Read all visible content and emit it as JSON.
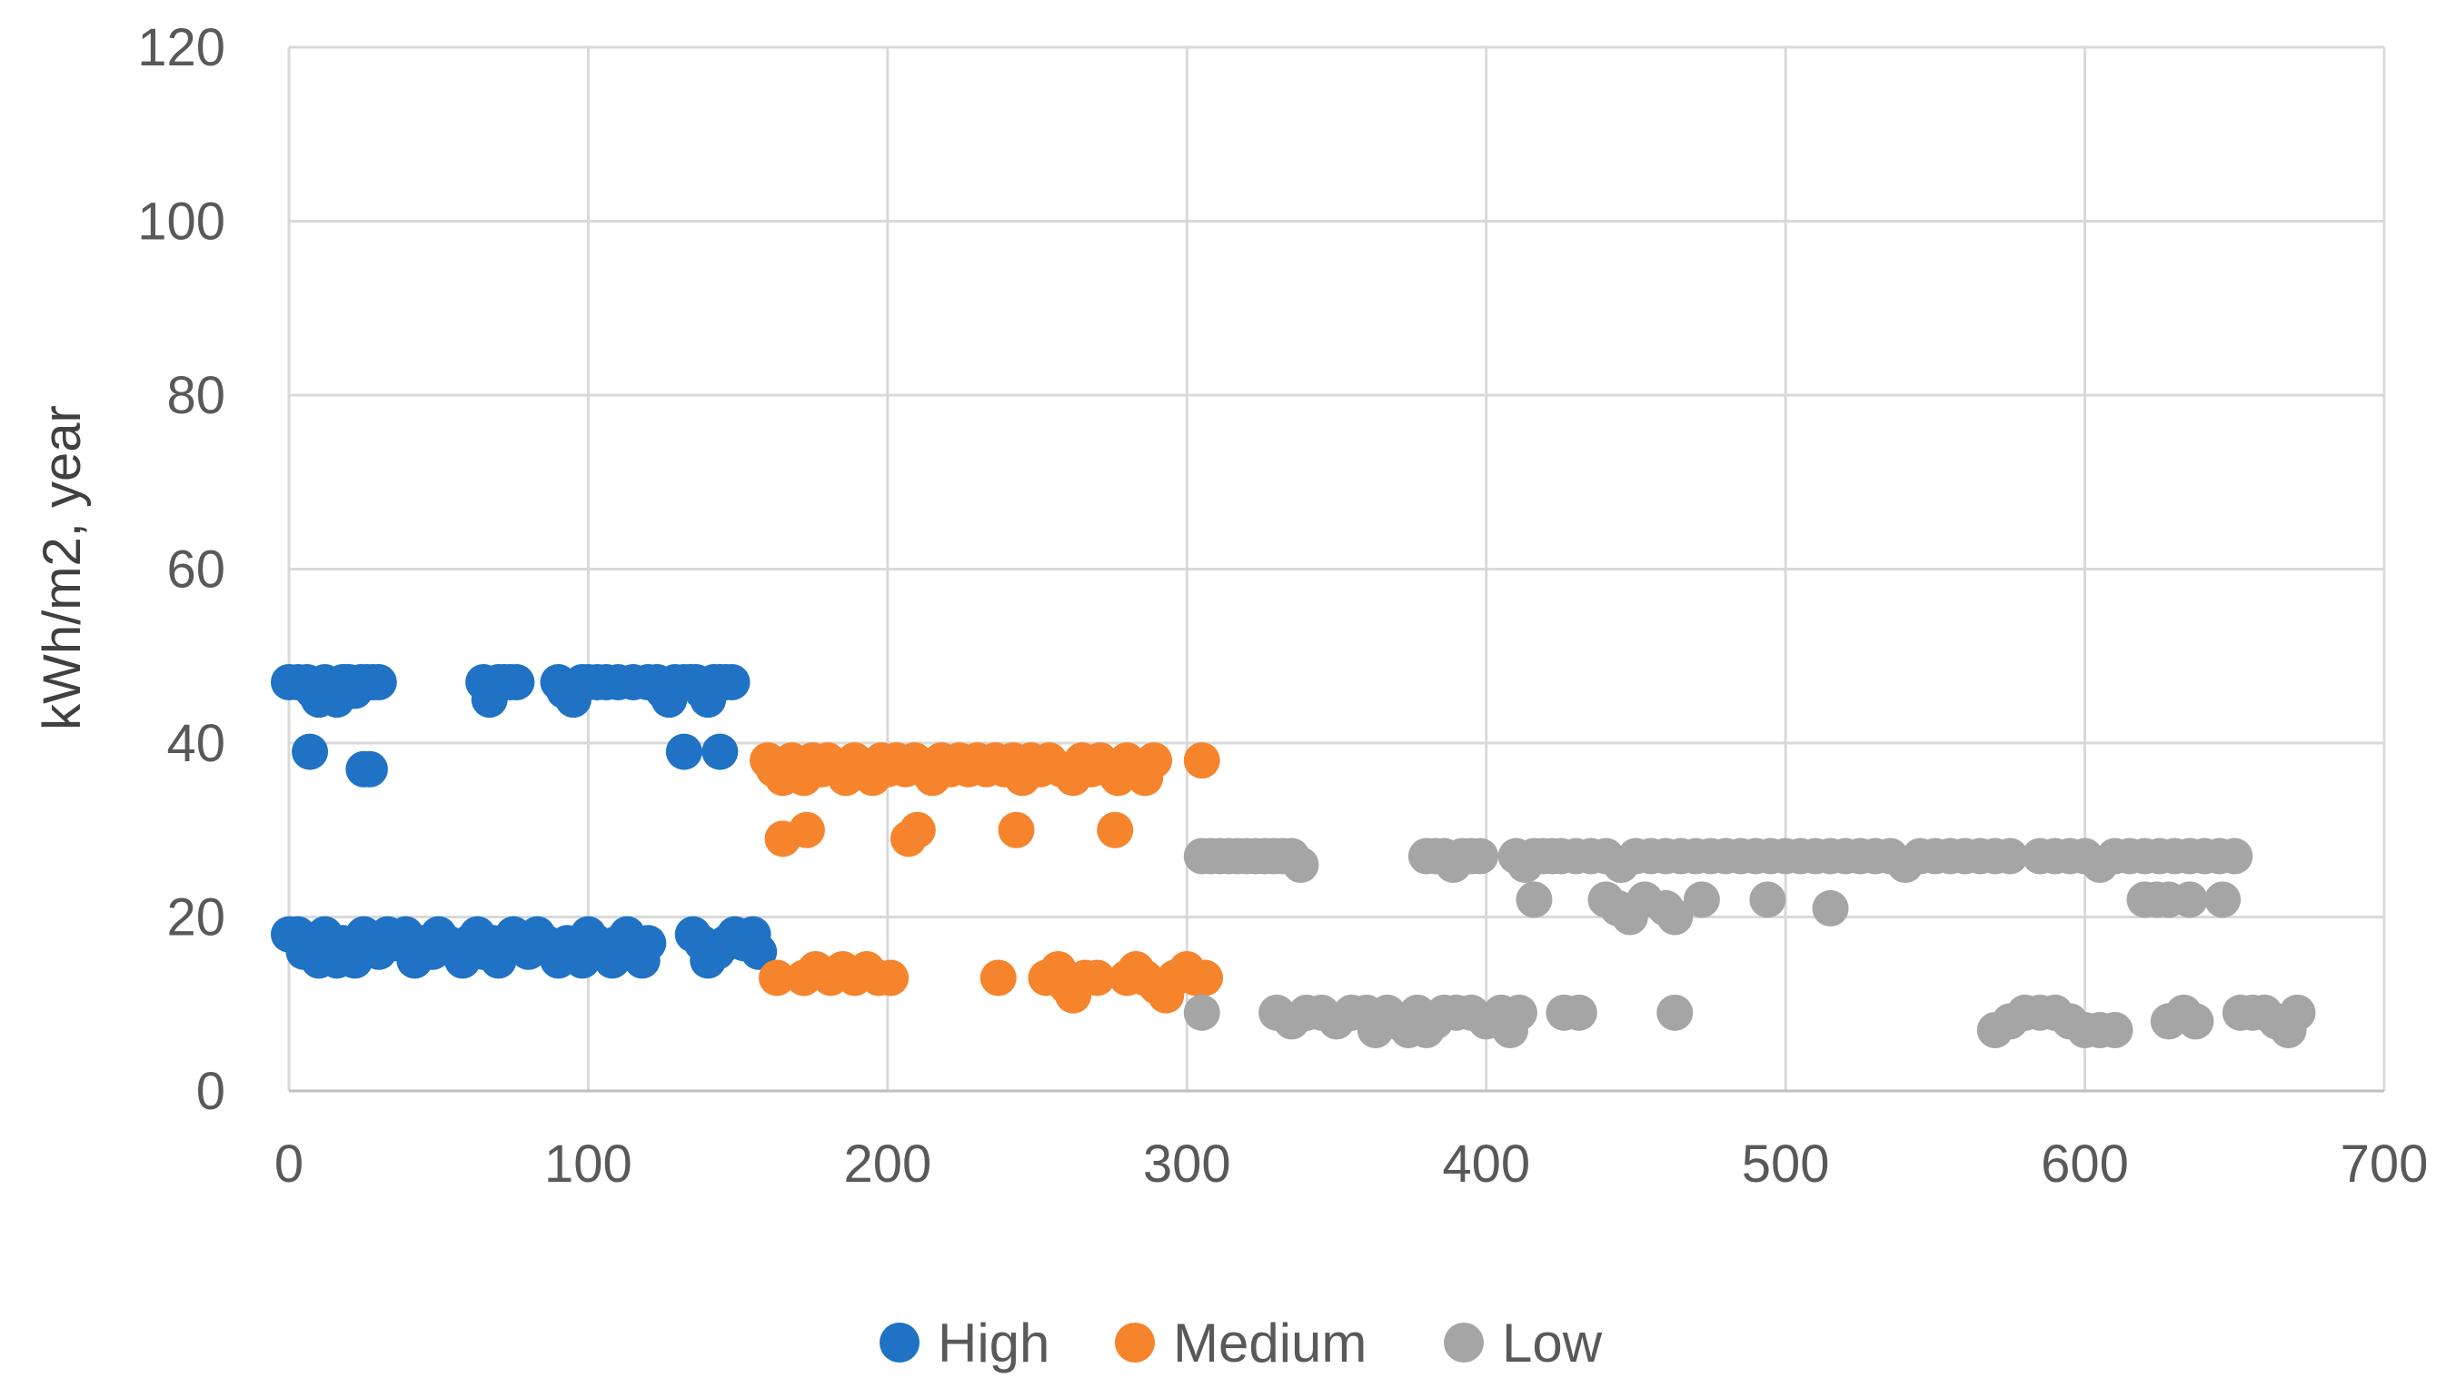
{
  "chart_data": {
    "type": "scatter",
    "title": "",
    "xlabel": "",
    "ylabel": "kWh/m2, year",
    "xlim": [
      0,
      700
    ],
    "ylim": [
      0,
      120
    ],
    "x_ticks": [
      0,
      100,
      200,
      300,
      400,
      500,
      600,
      700
    ],
    "y_ticks": [
      0,
      20,
      40,
      60,
      80,
      100,
      120
    ],
    "x_tick_labels": [
      "0",
      "100",
      "200",
      "300",
      "400",
      "500",
      "600",
      "700"
    ],
    "y_tick_labels": [
      "0",
      "20",
      "40",
      "60",
      "80",
      "100",
      "120"
    ],
    "grid": true,
    "legend_position": "bottom",
    "colors": {
      "High": "#1f72c4",
      "Medium": "#f5842c",
      "Low": "#a5a5a5"
    },
    "series": [
      {
        "name": "High",
        "color": "#1f72c4",
        "points": [
          [
            0,
            47
          ],
          [
            3,
            47
          ],
          [
            6,
            47
          ],
          [
            8,
            46
          ],
          [
            10,
            45
          ],
          [
            12,
            47
          ],
          [
            14,
            46
          ],
          [
            16,
            45
          ],
          [
            18,
            47
          ],
          [
            20,
            47
          ],
          [
            22,
            46
          ],
          [
            24,
            47
          ],
          [
            26,
            47
          ],
          [
            28,
            47
          ],
          [
            30,
            47
          ],
          [
            7,
            39
          ],
          [
            25,
            37
          ],
          [
            27,
            37
          ],
          [
            65,
            47
          ],
          [
            67,
            45
          ],
          [
            70,
            47
          ],
          [
            72,
            47
          ],
          [
            74,
            47
          ],
          [
            76,
            47
          ],
          [
            90,
            47
          ],
          [
            92,
            46
          ],
          [
            95,
            45
          ],
          [
            98,
            47
          ],
          [
            100,
            47
          ],
          [
            103,
            47
          ],
          [
            106,
            47
          ],
          [
            110,
            47
          ],
          [
            115,
            47
          ],
          [
            120,
            47
          ],
          [
            123,
            47
          ],
          [
            125,
            46
          ],
          [
            127,
            45
          ],
          [
            129,
            47
          ],
          [
            132,
            47
          ],
          [
            134,
            47
          ],
          [
            136,
            47
          ],
          [
            138,
            46
          ],
          [
            140,
            45
          ],
          [
            142,
            47
          ],
          [
            144,
            47
          ],
          [
            146,
            47
          ],
          [
            148,
            47
          ],
          [
            132,
            39
          ],
          [
            144,
            39
          ],
          [
            0,
            18
          ],
          [
            3,
            18
          ],
          [
            5,
            16
          ],
          [
            8,
            17
          ],
          [
            10,
            15
          ],
          [
            12,
            18
          ],
          [
            14,
            16
          ],
          [
            16,
            15
          ],
          [
            18,
            17
          ],
          [
            20,
            16
          ],
          [
            22,
            15
          ],
          [
            25,
            18
          ],
          [
            28,
            17
          ],
          [
            30,
            16
          ],
          [
            33,
            18
          ],
          [
            36,
            17
          ],
          [
            39,
            18
          ],
          [
            42,
            15
          ],
          [
            45,
            17
          ],
          [
            48,
            16
          ],
          [
            50,
            18
          ],
          [
            53,
            17
          ],
          [
            56,
            16
          ],
          [
            58,
            15
          ],
          [
            60,
            17
          ],
          [
            63,
            18
          ],
          [
            65,
            16
          ],
          [
            68,
            17
          ],
          [
            70,
            15
          ],
          [
            72,
            17
          ],
          [
            75,
            18
          ],
          [
            78,
            17
          ],
          [
            80,
            16
          ],
          [
            83,
            18
          ],
          [
            86,
            17
          ],
          [
            88,
            16
          ],
          [
            90,
            15
          ],
          [
            93,
            17
          ],
          [
            95,
            16
          ],
          [
            98,
            15
          ],
          [
            100,
            18
          ],
          [
            103,
            17
          ],
          [
            106,
            16
          ],
          [
            108,
            15
          ],
          [
            110,
            17
          ],
          [
            113,
            18
          ],
          [
            115,
            16
          ],
          [
            118,
            15
          ],
          [
            120,
            17
          ],
          [
            135,
            18
          ],
          [
            138,
            17
          ],
          [
            140,
            15
          ],
          [
            143,
            16
          ],
          [
            146,
            17
          ],
          [
            149,
            18
          ],
          [
            152,
            17
          ],
          [
            155,
            18
          ],
          [
            157,
            16
          ]
        ]
      },
      {
        "name": "Medium",
        "color": "#f5842c",
        "points": [
          [
            160,
            38
          ],
          [
            162,
            37
          ],
          [
            165,
            36
          ],
          [
            168,
            38
          ],
          [
            170,
            37
          ],
          [
            172,
            36
          ],
          [
            175,
            38
          ],
          [
            178,
            37
          ],
          [
            180,
            38
          ],
          [
            183,
            37
          ],
          [
            186,
            36
          ],
          [
            189,
            38
          ],
          [
            192,
            37
          ],
          [
            195,
            36
          ],
          [
            198,
            38
          ],
          [
            200,
            37
          ],
          [
            203,
            38
          ],
          [
            206,
            37
          ],
          [
            209,
            38
          ],
          [
            212,
            37
          ],
          [
            215,
            36
          ],
          [
            218,
            38
          ],
          [
            221,
            37
          ],
          [
            224,
            38
          ],
          [
            227,
            37
          ],
          [
            230,
            38
          ],
          [
            233,
            37
          ],
          [
            236,
            38
          ],
          [
            239,
            37
          ],
          [
            242,
            38
          ],
          [
            245,
            36
          ],
          [
            248,
            38
          ],
          [
            251,
            37
          ],
          [
            254,
            38
          ],
          [
            258,
            37
          ],
          [
            262,
            36
          ],
          [
            265,
            38
          ],
          [
            268,
            37
          ],
          [
            271,
            38
          ],
          [
            274,
            37
          ],
          [
            277,
            36
          ],
          [
            280,
            38
          ],
          [
            283,
            37
          ],
          [
            286,
            36
          ],
          [
            289,
            38
          ],
          [
            305,
            38
          ],
          [
            165,
            29
          ],
          [
            173,
            30
          ],
          [
            207,
            29
          ],
          [
            210,
            30
          ],
          [
            243,
            30
          ],
          [
            276,
            30
          ],
          [
            163,
            13
          ],
          [
            172,
            13
          ],
          [
            176,
            14
          ],
          [
            181,
            13
          ],
          [
            185,
            14
          ],
          [
            189,
            13
          ],
          [
            193,
            14
          ],
          [
            197,
            13
          ],
          [
            201,
            13
          ],
          [
            237,
            13
          ],
          [
            253,
            13
          ],
          [
            257,
            14
          ],
          [
            260,
            12
          ],
          [
            262,
            11
          ],
          [
            266,
            13
          ],
          [
            270,
            13
          ],
          [
            280,
            13
          ],
          [
            283,
            14
          ],
          [
            286,
            13
          ],
          [
            290,
            12
          ],
          [
            293,
            11
          ],
          [
            296,
            13
          ],
          [
            300,
            14
          ],
          [
            303,
            13
          ],
          [
            306,
            13
          ]
        ]
      },
      {
        "name": "Low",
        "color": "#a5a5a5",
        "points": [
          [
            305,
            27
          ],
          [
            308,
            27
          ],
          [
            311,
            27
          ],
          [
            314,
            27
          ],
          [
            317,
            27
          ],
          [
            320,
            27
          ],
          [
            323,
            27
          ],
          [
            326,
            27
          ],
          [
            329,
            27
          ],
          [
            332,
            27
          ],
          [
            335,
            27
          ],
          [
            338,
            26
          ],
          [
            380,
            27
          ],
          [
            383,
            27
          ],
          [
            386,
            27
          ],
          [
            389,
            26
          ],
          [
            392,
            27
          ],
          [
            395,
            27
          ],
          [
            398,
            27
          ],
          [
            410,
            27
          ],
          [
            413,
            26
          ],
          [
            416,
            27
          ],
          [
            419,
            27
          ],
          [
            422,
            27
          ],
          [
            425,
            27
          ],
          [
            430,
            27
          ],
          [
            435,
            27
          ],
          [
            440,
            27
          ],
          [
            445,
            26
          ],
          [
            450,
            27
          ],
          [
            455,
            27
          ],
          [
            460,
            27
          ],
          [
            465,
            27
          ],
          [
            470,
            27
          ],
          [
            475,
            27
          ],
          [
            480,
            27
          ],
          [
            485,
            27
          ],
          [
            490,
            27
          ],
          [
            495,
            27
          ],
          [
            500,
            27
          ],
          [
            505,
            27
          ],
          [
            510,
            27
          ],
          [
            515,
            27
          ],
          [
            520,
            27
          ],
          [
            525,
            27
          ],
          [
            530,
            27
          ],
          [
            535,
            27
          ],
          [
            540,
            26
          ],
          [
            545,
            27
          ],
          [
            550,
            27
          ],
          [
            555,
            27
          ],
          [
            560,
            27
          ],
          [
            565,
            27
          ],
          [
            570,
            27
          ],
          [
            575,
            27
          ],
          [
            585,
            27
          ],
          [
            590,
            27
          ],
          [
            595,
            27
          ],
          [
            600,
            27
          ],
          [
            605,
            26
          ],
          [
            610,
            27
          ],
          [
            615,
            27
          ],
          [
            620,
            27
          ],
          [
            625,
            27
          ],
          [
            630,
            27
          ],
          [
            635,
            27
          ],
          [
            640,
            27
          ],
          [
            645,
            27
          ],
          [
            650,
            27
          ],
          [
            416,
            22
          ],
          [
            440,
            22
          ],
          [
            444,
            21
          ],
          [
            448,
            20
          ],
          [
            453,
            22
          ],
          [
            460,
            21
          ],
          [
            463,
            20
          ],
          [
            472,
            22
          ],
          [
            494,
            22
          ],
          [
            515,
            21
          ],
          [
            620,
            22
          ],
          [
            624,
            22
          ],
          [
            628,
            22
          ],
          [
            635,
            22
          ],
          [
            646,
            22
          ],
          [
            305,
            9
          ],
          [
            330,
            9
          ],
          [
            335,
            8
          ],
          [
            340,
            9
          ],
          [
            345,
            9
          ],
          [
            350,
            8
          ],
          [
            355,
            9
          ],
          [
            360,
            9
          ],
          [
            363,
            7
          ],
          [
            367,
            9
          ],
          [
            370,
            8
          ],
          [
            374,
            7
          ],
          [
            377,
            9
          ],
          [
            380,
            7
          ],
          [
            383,
            8
          ],
          [
            386,
            9
          ],
          [
            390,
            9
          ],
          [
            395,
            9
          ],
          [
            400,
            8
          ],
          [
            405,
            9
          ],
          [
            408,
            7
          ],
          [
            411,
            9
          ],
          [
            426,
            9
          ],
          [
            431,
            9
          ],
          [
            463,
            9
          ],
          [
            570,
            7
          ],
          [
            575,
            8
          ],
          [
            580,
            9
          ],
          [
            585,
            9
          ],
          [
            590,
            9
          ],
          [
            595,
            8
          ],
          [
            600,
            7
          ],
          [
            605,
            7
          ],
          [
            610,
            7
          ],
          [
            628,
            8
          ],
          [
            633,
            9
          ],
          [
            637,
            8
          ],
          [
            652,
            9
          ],
          [
            656,
            9
          ],
          [
            660,
            9
          ],
          [
            664,
            8
          ],
          [
            668,
            7
          ],
          [
            671,
            9
          ]
        ]
      }
    ]
  }
}
